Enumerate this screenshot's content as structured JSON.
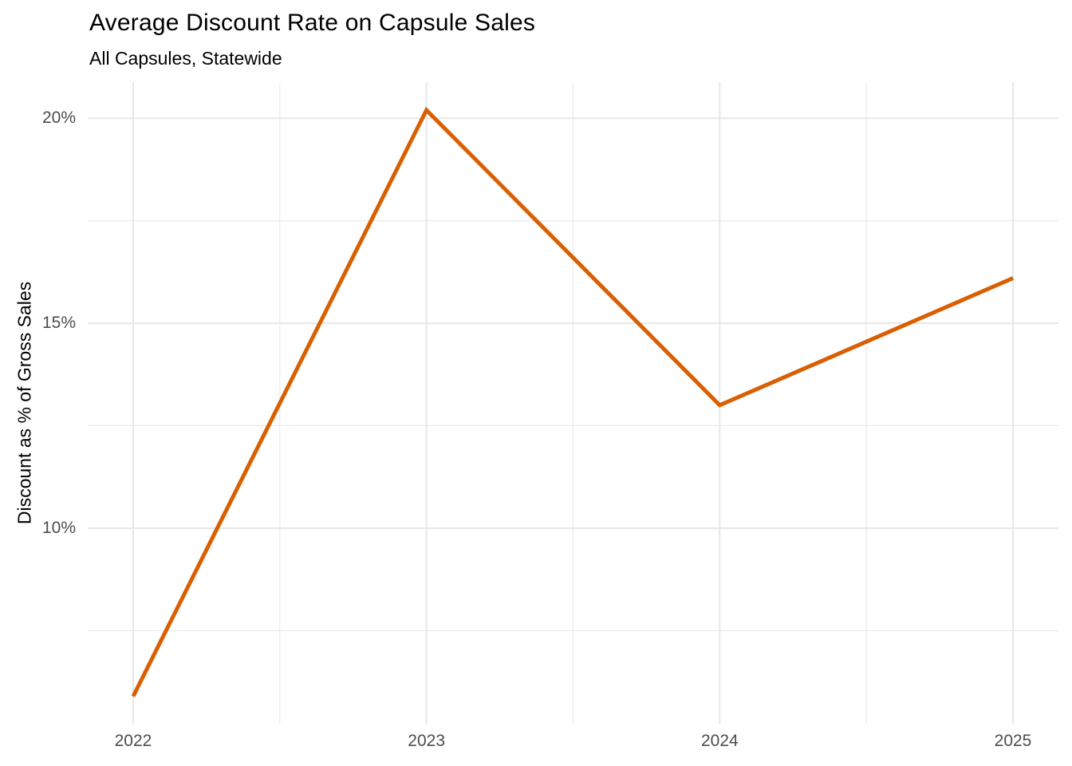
{
  "header": {
    "title": "Average Discount Rate on Capsule Sales",
    "subtitle": "All Capsules, Statewide"
  },
  "y_axis": {
    "title": "Discount as % of Gross Sales"
  },
  "chart_data": {
    "type": "line",
    "title": "Average Discount Rate on Capsule Sales",
    "subtitle": "All Capsules, Statewide",
    "xlabel": "",
    "ylabel": "Discount as % of Gross Sales",
    "x": [
      2022,
      2023,
      2024,
      2025
    ],
    "series": [
      {
        "name": "average_discount_rate_pct",
        "values": [
          5.9,
          20.2,
          13.0,
          16.1
        ]
      }
    ],
    "x_ticks": [
      {
        "value": 2022,
        "label": "2022"
      },
      {
        "value": 2023,
        "label": "2023"
      },
      {
        "value": 2024,
        "label": "2024"
      },
      {
        "value": 2025,
        "label": "2025"
      }
    ],
    "y_ticks": [
      {
        "value": 10,
        "label": "10%"
      },
      {
        "value": 15,
        "label": "15%"
      },
      {
        "value": 20,
        "label": "20%"
      }
    ],
    "x_minor_ticks": [
      2022.5,
      2023.5,
      2024.5
    ],
    "y_minor_ticks": [
      7.5,
      12.5,
      17.5
    ],
    "xlim": [
      2021.845,
      2025.155
    ],
    "ylim": [
      5.23,
      20.88
    ],
    "grid": "major-and-minor",
    "legend": "none",
    "colors": {
      "line": "#D95F02",
      "grid": "#E7E7E7",
      "tick_label": "#4D4D4D",
      "text": "#000000",
      "background": "#FFFFFF"
    }
  }
}
